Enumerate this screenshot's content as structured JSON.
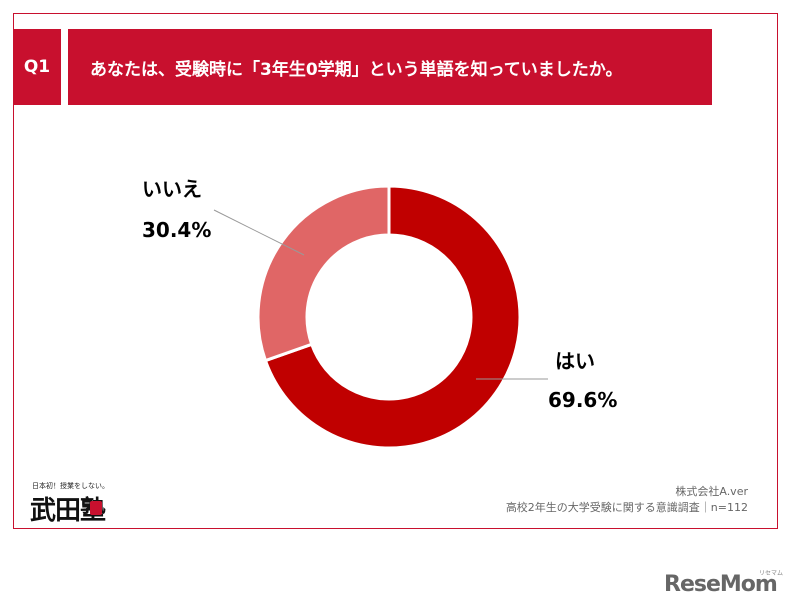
{
  "header": {
    "question_label": "Q1",
    "question_text": "あなたは、受験時に「3年生0学期」という単語を知っていましたか。"
  },
  "chart_data": {
    "type": "pie",
    "donut": true,
    "slices": [
      {
        "label": "はい",
        "value": 69.6,
        "value_text": "69.6%",
        "color": "#c00000"
      },
      {
        "label": "いいえ",
        "value": 30.4,
        "value_text": "30.4%",
        "color": "#e06666"
      }
    ]
  },
  "source": {
    "company": "株式会社A.ver",
    "survey": "高校2年生の大学受験に関する意識調査｜n=112"
  },
  "logo": {
    "tagline": "日本初！授業をしない。",
    "name": "武田塾"
  },
  "branding": {
    "name": "ReseMom",
    "sub": "リセマム"
  },
  "colors": {
    "accent": "#c8102e",
    "yes": "#c00000",
    "no": "#e06666"
  }
}
